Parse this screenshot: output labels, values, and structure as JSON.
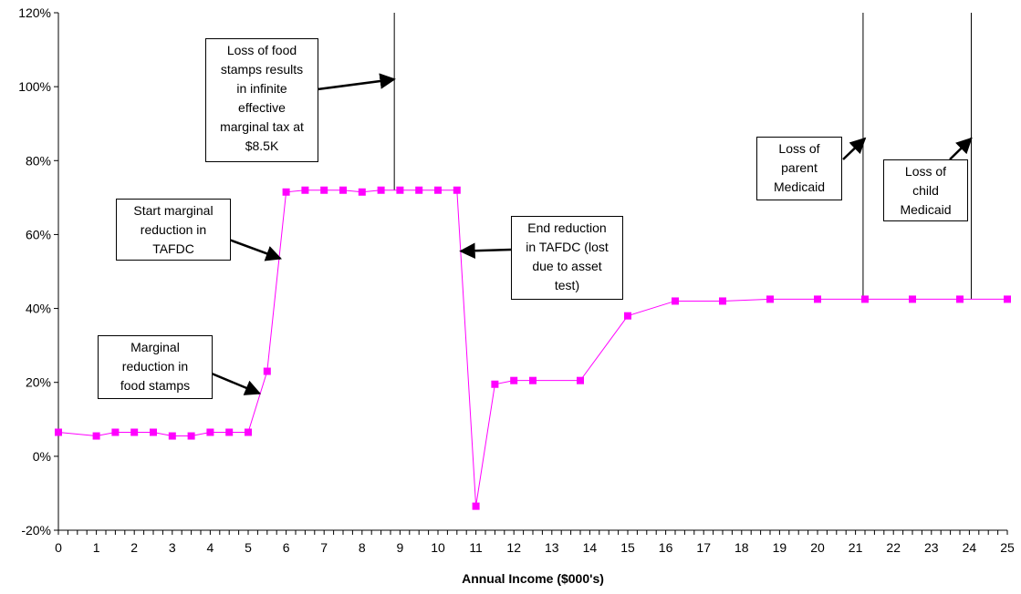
{
  "chart_data": {
    "type": "line",
    "title": "",
    "xlabel": "Annual Income ($000's)",
    "ylabel": "",
    "xlim": [
      0,
      25
    ],
    "ylim": [
      -20,
      120
    ],
    "x_ticks": [
      "0",
      "1",
      "2",
      "3",
      "4",
      "5",
      "6",
      "7",
      "8",
      "9",
      "10",
      "11",
      "12",
      "13",
      "14",
      "15",
      "16",
      "17",
      "18",
      "19",
      "20",
      "21",
      "22",
      "23",
      "24",
      "25"
    ],
    "y_ticks": [
      "-20%",
      "0%",
      "20%",
      "40%",
      "60%",
      "80%",
      "100%",
      "120%"
    ],
    "y_tick_values": [
      -20,
      0,
      20,
      40,
      60,
      80,
      100,
      120
    ],
    "grid": false,
    "legend": "none",
    "series": [
      {
        "color": "#ff00ff",
        "marker": "square",
        "x": [
          0,
          1,
          1.5,
          2,
          2.5,
          3,
          3.5,
          4,
          4.5,
          5,
          5.5,
          6,
          6.5,
          7,
          7.5,
          8,
          8.5,
          9,
          9.5,
          10,
          10.5,
          11,
          11.5,
          12,
          12.5,
          13.75,
          15,
          16.25,
          17.5,
          18.75,
          20,
          21.25,
          22.5,
          23.75,
          25
        ],
        "y": [
          6.5,
          5.5,
          6.5,
          6.5,
          6.5,
          5.5,
          5.5,
          6.5,
          6.5,
          6.5,
          23,
          71.5,
          72,
          72,
          72,
          71.5,
          72,
          72,
          72,
          72,
          72,
          -13.5,
          19.5,
          20.5,
          20.5,
          20.5,
          38,
          42,
          42,
          42.5,
          42.5,
          42.5,
          42.5,
          42.5,
          42.5
        ]
      }
    ],
    "vertical_lines": [
      {
        "x": 8.85,
        "y_from": 72,
        "y_to": 120
      },
      {
        "x": 21.2,
        "y_from": 42.5,
        "y_to": 120
      },
      {
        "x": 24.05,
        "y_from": 42.5,
        "y_to": 120
      }
    ],
    "annotations": [
      {
        "id": "food-stamps-loss",
        "lines": [
          "Loss of food",
          "stamps results",
          "in infinite",
          "effective",
          "marginal tax at",
          "$8.5K"
        ],
        "arrow_to": [
          8.85,
          102
        ]
      },
      {
        "id": "start-tafdc",
        "lines": [
          "Start marginal",
          "reduction in",
          "TAFDC"
        ],
        "arrow_to": [
          5.85,
          53.5
        ]
      },
      {
        "id": "marginal-food-stamps",
        "lines": [
          "Marginal",
          "reduction in",
          "food stamps"
        ],
        "arrow_to": [
          5.3,
          17
        ]
      },
      {
        "id": "end-tafdc",
        "lines": [
          "End reduction",
          "in TAFDC (lost",
          "due to asset",
          "test)"
        ],
        "arrow_to": [
          10.6,
          55.5
        ]
      },
      {
        "id": "parent-medicaid",
        "lines": [
          "Loss of",
          "parent",
          "Medicaid"
        ],
        "arrow_to": [
          21.25,
          86
        ]
      },
      {
        "id": "child-medicaid",
        "lines": [
          "Loss of",
          "child",
          "Medicaid"
        ],
        "arrow_to": [
          24.05,
          86
        ]
      }
    ]
  }
}
